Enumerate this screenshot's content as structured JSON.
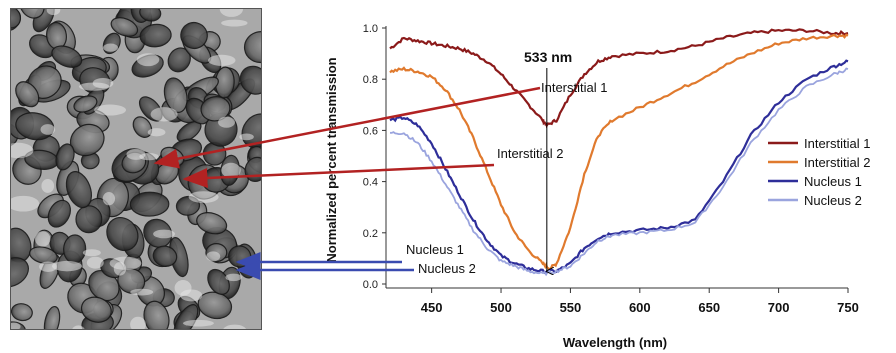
{
  "chart_data": {
    "type": "line",
    "xlabel": "Wavelength (nm)",
    "ylabel": "Normalized percent transmission",
    "xlim": [
      420,
      750
    ],
    "ylim": [
      0.0,
      1.0
    ],
    "x_ticks": [
      450,
      500,
      550,
      600,
      650,
      700,
      750
    ],
    "y_ticks": [
      "0.0",
      "0.2",
      "0.4",
      "0.6",
      "0.8",
      "1.0"
    ],
    "legend_position": "right",
    "grid": false,
    "series": [
      {
        "name": "Interstitial 1",
        "color": "#8b1a1a",
        "x": [
          420,
          430,
          440,
          450,
          460,
          470,
          480,
          490,
          500,
          510,
          520,
          530,
          533,
          540,
          550,
          560,
          570,
          580,
          600,
          620,
          640,
          660,
          680,
          700,
          720,
          740,
          750
        ],
        "y": [
          0.92,
          0.96,
          0.95,
          0.94,
          0.93,
          0.92,
          0.9,
          0.87,
          0.82,
          0.76,
          0.7,
          0.64,
          0.62,
          0.64,
          0.74,
          0.82,
          0.87,
          0.89,
          0.9,
          0.91,
          0.93,
          0.96,
          0.98,
          0.99,
          0.99,
          0.98,
          0.98
        ]
      },
      {
        "name": "Interstitial 2",
        "color": "#e07a2e",
        "x": [
          420,
          430,
          440,
          450,
          460,
          470,
          480,
          490,
          500,
          510,
          520,
          530,
          535,
          540,
          550,
          560,
          570,
          580,
          600,
          620,
          640,
          660,
          680,
          700,
          720,
          740,
          750
        ],
        "y": [
          0.83,
          0.84,
          0.83,
          0.81,
          0.76,
          0.68,
          0.57,
          0.44,
          0.31,
          0.2,
          0.13,
          0.08,
          0.06,
          0.08,
          0.22,
          0.43,
          0.58,
          0.64,
          0.69,
          0.74,
          0.79,
          0.85,
          0.9,
          0.94,
          0.96,
          0.97,
          0.97
        ]
      },
      {
        "name": "Nucleus 1",
        "color": "#2e2e99",
        "x": [
          420,
          430,
          440,
          450,
          460,
          470,
          480,
          490,
          500,
          510,
          520,
          530,
          540,
          550,
          560,
          570,
          580,
          600,
          620,
          640,
          660,
          680,
          700,
          720,
          740,
          750
        ],
        "y": [
          0.64,
          0.65,
          0.62,
          0.55,
          0.45,
          0.35,
          0.25,
          0.17,
          0.11,
          0.08,
          0.06,
          0.05,
          0.05,
          0.08,
          0.14,
          0.18,
          0.2,
          0.21,
          0.22,
          0.25,
          0.4,
          0.58,
          0.71,
          0.8,
          0.85,
          0.87
        ]
      },
      {
        "name": "Nucleus 2",
        "color": "#9aa4de",
        "x": [
          420,
          430,
          440,
          450,
          460,
          470,
          480,
          490,
          500,
          510,
          520,
          530,
          540,
          550,
          560,
          570,
          580,
          600,
          620,
          640,
          660,
          680,
          700,
          720,
          740,
          750
        ],
        "y": [
          0.59,
          0.59,
          0.55,
          0.48,
          0.39,
          0.3,
          0.21,
          0.14,
          0.09,
          0.07,
          0.05,
          0.04,
          0.05,
          0.07,
          0.12,
          0.17,
          0.19,
          0.2,
          0.21,
          0.24,
          0.38,
          0.55,
          0.68,
          0.77,
          0.82,
          0.84
        ]
      }
    ],
    "annotations": {
      "peak_label": "533 nm",
      "peak_x": 533,
      "labels": [
        "Interstitial 1",
        "Interstitial 2",
        "Nucleus 1",
        "Nucleus 2"
      ]
    }
  }
}
